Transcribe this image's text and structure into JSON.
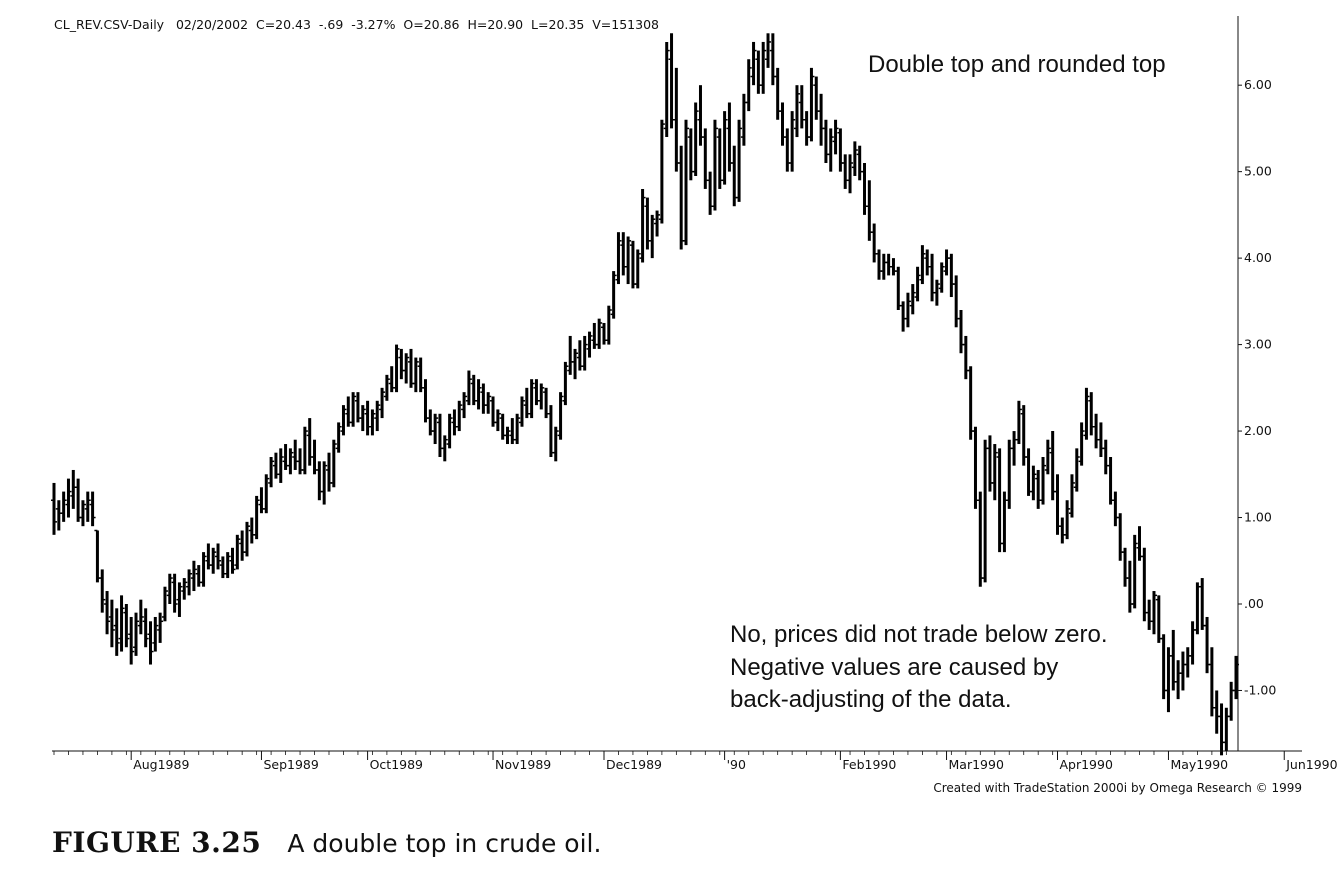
{
  "header": "CL_REV.CSV-Daily   02/20/2002  C=20.43  -.69  -3.27%  O=20.86  H=20.90  L=20.35  V=151308",
  "annotations": {
    "top": "Double top and rounded top",
    "bottom": [
      "No, prices did not trade below zero.",
      "Negative values are caused by",
      "back-adjusting of the data."
    ]
  },
  "credit": "Created with TradeStation 2000i by Omega Research © 1999",
  "caption": {
    "label": "FIGURE 3.25",
    "text": "A double top in crude oil."
  },
  "chart_data": {
    "type": "bar",
    "style": "ohlc",
    "title": "",
    "xlabel": "",
    "ylabel": "",
    "ylim": [
      -1.7,
      6.8
    ],
    "grid": false,
    "y_axis_position": "right",
    "y_ticks": [
      {
        "value": 6.0,
        "label": "6.00"
      },
      {
        "value": 5.0,
        "label": "5.00"
      },
      {
        "value": 4.0,
        "label": "4.00"
      },
      {
        "value": 3.0,
        "label": "3.00"
      },
      {
        "value": 2.0,
        "label": "2.00"
      },
      {
        "value": 1.0,
        "label": "1.00"
      },
      {
        "value": 0.0,
        "label": ".00"
      },
      {
        "value": -1.0,
        "label": "-1.00"
      }
    ],
    "x_ticks": [
      {
        "index": 16,
        "label": "Aug1989"
      },
      {
        "index": 43,
        "label": "Sep1989"
      },
      {
        "index": 65,
        "label": "Oct1989"
      },
      {
        "index": 91,
        "label": "Nov1989"
      },
      {
        "index": 114,
        "label": "Dec1989"
      },
      {
        "index": 139,
        "label": "'90"
      },
      {
        "index": 163,
        "label": "Feb1990"
      },
      {
        "index": 185,
        "label": "Mar1990"
      },
      {
        "index": 208,
        "label": "Apr1990"
      },
      {
        "index": 231,
        "label": "May1990"
      },
      {
        "index": 255,
        "label": "Jun1990"
      }
    ],
    "bars": [
      [
        1.2,
        1.4,
        0.8,
        0.95
      ],
      [
        1.1,
        1.2,
        0.85,
        1.05
      ],
      [
        1.05,
        1.3,
        0.95,
        1.2
      ],
      [
        1.15,
        1.45,
        1.0,
        1.3
      ],
      [
        1.25,
        1.55,
        1.1,
        1.35
      ],
      [
        1.35,
        1.45,
        0.95,
        1.0
      ],
      [
        1.0,
        1.2,
        0.9,
        1.15
      ],
      [
        1.1,
        1.3,
        0.95,
        1.2
      ],
      [
        1.15,
        1.3,
        0.9,
        1.0
      ],
      [
        0.85,
        0.85,
        0.25,
        0.3
      ],
      [
        0.3,
        0.4,
        -0.1,
        0.05
      ],
      [
        0.0,
        0.15,
        -0.35,
        -0.2
      ],
      [
        -0.15,
        0.05,
        -0.5,
        -0.3
      ],
      [
        -0.25,
        -0.05,
        -0.6,
        -0.45
      ],
      [
        -0.4,
        0.1,
        -0.55,
        -0.05
      ],
      [
        -0.1,
        0.0,
        -0.5,
        -0.4
      ],
      [
        -0.35,
        -0.15,
        -0.7,
        -0.55
      ],
      [
        -0.5,
        -0.1,
        -0.6,
        -0.2
      ],
      [
        -0.25,
        0.05,
        -0.35,
        -0.15
      ],
      [
        -0.2,
        -0.05,
        -0.5,
        -0.4
      ],
      [
        -0.35,
        -0.2,
        -0.7,
        -0.55
      ],
      [
        -0.45,
        -0.15,
        -0.55,
        -0.25
      ],
      [
        -0.3,
        -0.1,
        -0.45,
        -0.2
      ],
      [
        -0.15,
        0.2,
        -0.2,
        0.15
      ],
      [
        0.1,
        0.35,
        0.0,
        0.3
      ],
      [
        0.25,
        0.35,
        -0.1,
        0.0
      ],
      [
        0.05,
        0.25,
        -0.15,
        0.2
      ],
      [
        0.15,
        0.3,
        0.05,
        0.25
      ],
      [
        0.2,
        0.4,
        0.1,
        0.35
      ],
      [
        0.3,
        0.5,
        0.15,
        0.4
      ],
      [
        0.35,
        0.45,
        0.2,
        0.25
      ],
      [
        0.25,
        0.6,
        0.2,
        0.55
      ],
      [
        0.5,
        0.7,
        0.4,
        0.45
      ],
      [
        0.45,
        0.65,
        0.35,
        0.6
      ],
      [
        0.55,
        0.7,
        0.4,
        0.5
      ],
      [
        0.45,
        0.55,
        0.3,
        0.35
      ],
      [
        0.35,
        0.6,
        0.3,
        0.55
      ],
      [
        0.5,
        0.65,
        0.35,
        0.4
      ],
      [
        0.45,
        0.8,
        0.4,
        0.75
      ],
      [
        0.7,
        0.85,
        0.5,
        0.6
      ],
      [
        0.6,
        0.95,
        0.55,
        0.9
      ],
      [
        0.85,
        1.0,
        0.7,
        0.8
      ],
      [
        0.8,
        1.25,
        0.75,
        1.2
      ],
      [
        1.15,
        1.35,
        1.05,
        1.1
      ],
      [
        1.1,
        1.5,
        1.05,
        1.45
      ],
      [
        1.4,
        1.7,
        1.35,
        1.65
      ],
      [
        1.6,
        1.75,
        1.45,
        1.5
      ],
      [
        1.5,
        1.8,
        1.4,
        1.7
      ],
      [
        1.65,
        1.85,
        1.55,
        1.6
      ],
      [
        1.6,
        1.8,
        1.5,
        1.75
      ],
      [
        1.7,
        1.9,
        1.55,
        1.65
      ],
      [
        1.65,
        1.8,
        1.5,
        1.55
      ],
      [
        1.55,
        2.05,
        1.5,
        2.0
      ],
      [
        1.95,
        2.15,
        1.6,
        1.7
      ],
      [
        1.7,
        1.9,
        1.5,
        1.55
      ],
      [
        1.55,
        1.65,
        1.2,
        1.3
      ],
      [
        1.3,
        1.65,
        1.15,
        1.6
      ],
      [
        1.55,
        1.75,
        1.3,
        1.4
      ],
      [
        1.4,
        1.9,
        1.35,
        1.85
      ],
      [
        1.8,
        2.1,
        1.75,
        2.05
      ],
      [
        2.0,
        2.3,
        1.95,
        2.25
      ],
      [
        2.2,
        2.4,
        2.05,
        2.1
      ],
      [
        2.1,
        2.45,
        2.05,
        2.4
      ],
      [
        2.35,
        2.45,
        2.1,
        2.15
      ],
      [
        2.15,
        2.3,
        2.0,
        2.25
      ],
      [
        2.2,
        2.35,
        1.95,
        2.05
      ],
      [
        2.05,
        2.25,
        1.95,
        2.2
      ],
      [
        2.15,
        2.35,
        2.0,
        2.3
      ],
      [
        2.25,
        2.5,
        2.15,
        2.45
      ],
      [
        2.4,
        2.65,
        2.35,
        2.6
      ],
      [
        2.55,
        2.75,
        2.45,
        2.5
      ],
      [
        2.5,
        3.0,
        2.45,
        2.95
      ],
      [
        2.85,
        2.95,
        2.6,
        2.7
      ],
      [
        2.7,
        2.9,
        2.55,
        2.85
      ],
      [
        2.8,
        2.95,
        2.5,
        2.55
      ],
      [
        2.55,
        2.85,
        2.45,
        2.8
      ],
      [
        2.75,
        2.85,
        2.45,
        2.5
      ],
      [
        2.5,
        2.6,
        2.1,
        2.15
      ],
      [
        2.15,
        2.25,
        1.95,
        2.0
      ],
      [
        2.0,
        2.2,
        1.85,
        2.15
      ],
      [
        2.1,
        2.2,
        1.7,
        1.8
      ],
      [
        1.8,
        1.95,
        1.65,
        1.9
      ],
      [
        1.85,
        2.2,
        1.8,
        2.15
      ],
      [
        2.1,
        2.25,
        1.95,
        2.05
      ],
      [
        2.05,
        2.35,
        2.0,
        2.3
      ],
      [
        2.25,
        2.45,
        2.15,
        2.4
      ],
      [
        2.35,
        2.7,
        2.3,
        2.6
      ],
      [
        2.55,
        2.65,
        2.3,
        2.35
      ],
      [
        2.35,
        2.6,
        2.25,
        2.5
      ],
      [
        2.45,
        2.55,
        2.2,
        2.3
      ],
      [
        2.3,
        2.45,
        2.2,
        2.4
      ],
      [
        2.35,
        2.4,
        2.05,
        2.1
      ],
      [
        2.1,
        2.25,
        2.0,
        2.2
      ],
      [
        2.15,
        2.2,
        1.9,
        1.95
      ],
      [
        1.95,
        2.05,
        1.85,
        2.0
      ],
      [
        1.95,
        2.15,
        1.85,
        1.9
      ],
      [
        1.9,
        2.2,
        1.85,
        2.15
      ],
      [
        2.1,
        2.4,
        2.05,
        2.35
      ],
      [
        2.3,
        2.5,
        2.15,
        2.2
      ],
      [
        2.2,
        2.6,
        2.15,
        2.55
      ],
      [
        2.5,
        2.6,
        2.3,
        2.35
      ],
      [
        2.35,
        2.55,
        2.25,
        2.5
      ],
      [
        2.45,
        2.5,
        2.15,
        2.2
      ],
      [
        2.2,
        2.3,
        1.7,
        1.75
      ],
      [
        1.75,
        2.05,
        1.65,
        2.0
      ],
      [
        1.95,
        2.45,
        1.9,
        2.4
      ],
      [
        2.35,
        2.8,
        2.3,
        2.75
      ],
      [
        2.7,
        3.1,
        2.65,
        2.8
      ],
      [
        2.8,
        2.95,
        2.6,
        2.9
      ],
      [
        2.85,
        3.05,
        2.7,
        2.75
      ],
      [
        2.75,
        3.1,
        2.7,
        3.0
      ],
      [
        2.95,
        3.15,
        2.85,
        3.1
      ],
      [
        3.05,
        3.25,
        2.95,
        3.0
      ],
      [
        3.0,
        3.3,
        2.95,
        3.25
      ],
      [
        3.2,
        3.25,
        3.0,
        3.05
      ],
      [
        3.05,
        3.45,
        3.0,
        3.4
      ],
      [
        3.35,
        3.85,
        3.3,
        3.8
      ],
      [
        3.75,
        4.3,
        3.7,
        4.2
      ],
      [
        4.15,
        4.3,
        3.8,
        3.9
      ],
      [
        3.9,
        4.25,
        3.7,
        4.2
      ],
      [
        4.15,
        4.2,
        3.65,
        3.7
      ],
      [
        3.7,
        4.1,
        3.65,
        4.05
      ],
      [
        4.0,
        4.8,
        3.95,
        4.7
      ],
      [
        4.6,
        4.7,
        4.1,
        4.2
      ],
      [
        4.2,
        4.5,
        4.0,
        4.45
      ],
      [
        4.4,
        4.55,
        4.25,
        4.5
      ],
      [
        4.45,
        5.6,
        4.4,
        5.55
      ],
      [
        5.5,
        6.5,
        5.4,
        6.4
      ],
      [
        6.3,
        6.6,
        5.5,
        5.6
      ],
      [
        5.6,
        6.2,
        5.0,
        5.1
      ],
      [
        5.1,
        5.3,
        4.1,
        4.2
      ],
      [
        4.2,
        5.6,
        4.15,
        5.5
      ],
      [
        5.4,
        5.5,
        4.9,
        5.0
      ],
      [
        5.0,
        5.8,
        4.95,
        5.7
      ],
      [
        5.6,
        6.0,
        5.3,
        5.4
      ],
      [
        5.4,
        5.5,
        4.8,
        4.9
      ],
      [
        4.9,
        5.0,
        4.5,
        4.6
      ],
      [
        4.6,
        5.6,
        4.55,
        5.5
      ],
      [
        5.4,
        5.5,
        4.8,
        4.9
      ],
      [
        4.9,
        5.7,
        4.85,
        5.6
      ],
      [
        5.5,
        5.8,
        5.0,
        5.1
      ],
      [
        5.1,
        5.3,
        4.6,
        4.7
      ],
      [
        4.7,
        5.6,
        4.65,
        5.5
      ],
      [
        5.4,
        5.9,
        5.3,
        5.8
      ],
      [
        5.8,
        6.3,
        5.7,
        6.2
      ],
      [
        6.1,
        6.5,
        6.0,
        6.4
      ],
      [
        6.3,
        6.4,
        5.9,
        6.0
      ],
      [
        6.0,
        6.5,
        5.9,
        6.4
      ],
      [
        6.3,
        6.6,
        6.2,
        6.5
      ],
      [
        6.4,
        6.6,
        6.0,
        6.1
      ],
      [
        6.1,
        6.2,
        5.6,
        5.7
      ],
      [
        5.7,
        5.8,
        5.3,
        5.4
      ],
      [
        5.4,
        5.5,
        5.0,
        5.1
      ],
      [
        5.1,
        5.7,
        5.0,
        5.6
      ],
      [
        5.5,
        6.0,
        5.4,
        5.9
      ],
      [
        5.8,
        6.0,
        5.5,
        5.6
      ],
      [
        5.6,
        5.7,
        5.3,
        5.4
      ],
      [
        5.4,
        6.2,
        5.35,
        6.1
      ],
      [
        6.0,
        6.1,
        5.6,
        5.7
      ],
      [
        5.7,
        5.9,
        5.3,
        5.5
      ],
      [
        5.5,
        5.6,
        5.1,
        5.2
      ],
      [
        5.2,
        5.5,
        5.0,
        5.4
      ],
      [
        5.35,
        5.6,
        5.2,
        5.5
      ],
      [
        5.45,
        5.5,
        5.0,
        5.1
      ],
      [
        5.1,
        5.2,
        4.8,
        4.9
      ],
      [
        4.9,
        5.2,
        4.75,
        5.1
      ],
      [
        5.05,
        5.35,
        4.95,
        5.25
      ],
      [
        5.2,
        5.3,
        4.9,
        5.0
      ],
      [
        5.0,
        5.1,
        4.5,
        4.6
      ],
      [
        4.6,
        4.9,
        4.2,
        4.3
      ],
      [
        4.3,
        4.4,
        3.95,
        4.05
      ],
      [
        4.05,
        4.1,
        3.75,
        3.85
      ],
      [
        3.85,
        4.05,
        3.75,
        3.95
      ],
      [
        3.95,
        4.05,
        3.8,
        3.9
      ],
      [
        3.9,
        4.0,
        3.8,
        3.85
      ],
      [
        3.85,
        3.9,
        3.4,
        3.45
      ],
      [
        3.45,
        3.5,
        3.15,
        3.3
      ],
      [
        3.3,
        3.6,
        3.2,
        3.5
      ],
      [
        3.45,
        3.7,
        3.35,
        3.6
      ],
      [
        3.55,
        3.9,
        3.5,
        3.8
      ],
      [
        3.75,
        4.15,
        3.7,
        4.05
      ],
      [
        4.0,
        4.1,
        3.8,
        3.9
      ],
      [
        3.9,
        4.05,
        3.5,
        3.6
      ],
      [
        3.6,
        3.75,
        3.45,
        3.7
      ],
      [
        3.65,
        3.95,
        3.6,
        3.9
      ],
      [
        3.85,
        4.1,
        3.8,
        4.0
      ],
      [
        4.0,
        4.05,
        3.55,
        3.7
      ],
      [
        3.7,
        3.8,
        3.2,
        3.3
      ],
      [
        3.3,
        3.4,
        2.9,
        3.0
      ],
      [
        3.0,
        3.1,
        2.6,
        2.7
      ],
      [
        2.7,
        2.75,
        1.9,
        2.0
      ],
      [
        2.0,
        2.05,
        1.1,
        1.2
      ],
      [
        1.2,
        1.3,
        0.2,
        0.3
      ],
      [
        0.3,
        1.9,
        0.25,
        1.8
      ],
      [
        1.8,
        1.95,
        1.3,
        1.4
      ],
      [
        1.4,
        1.85,
        1.2,
        1.75
      ],
      [
        1.7,
        1.8,
        0.6,
        0.7
      ],
      [
        0.7,
        1.3,
        0.6,
        1.2
      ],
      [
        1.2,
        1.9,
        1.1,
        1.8
      ],
      [
        1.8,
        2.0,
        1.6,
        1.9
      ],
      [
        1.9,
        2.35,
        1.85,
        2.25
      ],
      [
        2.2,
        2.3,
        1.6,
        1.7
      ],
      [
        1.7,
        1.8,
        1.25,
        1.3
      ],
      [
        1.3,
        1.6,
        1.2,
        1.5
      ],
      [
        1.45,
        1.55,
        1.1,
        1.2
      ],
      [
        1.2,
        1.7,
        1.15,
        1.6
      ],
      [
        1.55,
        1.9,
        1.5,
        1.8
      ],
      [
        1.75,
        2.0,
        1.2,
        1.3
      ],
      [
        1.3,
        1.5,
        0.8,
        0.9
      ],
      [
        0.9,
        1.0,
        0.7,
        0.8
      ],
      [
        0.8,
        1.2,
        0.75,
        1.1
      ],
      [
        1.05,
        1.5,
        1.0,
        1.4
      ],
      [
        1.35,
        1.8,
        1.3,
        1.7
      ],
      [
        1.65,
        2.1,
        1.6,
        2.0
      ],
      [
        1.95,
        2.5,
        1.9,
        2.4
      ],
      [
        2.35,
        2.45,
        1.95,
        2.05
      ],
      [
        2.05,
        2.2,
        1.8,
        1.9
      ],
      [
        1.9,
        2.1,
        1.7,
        1.8
      ],
      [
        1.8,
        1.9,
        1.5,
        1.6
      ],
      [
        1.6,
        1.7,
        1.15,
        1.2
      ],
      [
        1.2,
        1.3,
        0.9,
        1.0
      ],
      [
        1.0,
        1.05,
        0.5,
        0.6
      ],
      [
        0.6,
        0.65,
        0.2,
        0.3
      ],
      [
        0.3,
        0.5,
        -0.1,
        0.0
      ],
      [
        0.0,
        0.8,
        -0.05,
        0.7
      ],
      [
        0.65,
        0.9,
        0.5,
        0.55
      ],
      [
        0.55,
        0.65,
        -0.2,
        -0.1
      ],
      [
        -0.1,
        0.05,
        -0.3,
        -0.2
      ],
      [
        -0.2,
        0.15,
        -0.35,
        0.1
      ],
      [
        0.05,
        0.1,
        -0.45,
        -0.4
      ],
      [
        -0.4,
        -0.35,
        -1.1,
        -1.0
      ],
      [
        -1.0,
        -0.5,
        -1.25,
        -0.6
      ],
      [
        -0.6,
        -0.3,
        -1.0,
        -0.9
      ],
      [
        -0.9,
        -0.65,
        -1.1,
        -0.8
      ],
      [
        -0.8,
        -0.55,
        -1.0,
        -0.7
      ],
      [
        -0.7,
        -0.5,
        -0.85,
        -0.6
      ],
      [
        -0.6,
        -0.2,
        -0.7,
        -0.3
      ],
      [
        -0.3,
        0.25,
        -0.35,
        0.2
      ],
      [
        0.2,
        0.3,
        -0.3,
        -0.25
      ],
      [
        -0.25,
        -0.15,
        -0.8,
        -0.7
      ],
      [
        -0.7,
        -0.5,
        -1.3,
        -1.2
      ],
      [
        -1.2,
        -1.0,
        -1.5,
        -1.3
      ],
      [
        -1.3,
        -1.15,
        -1.75,
        -1.6
      ],
      [
        -1.6,
        -1.2,
        -1.7,
        -1.3
      ],
      [
        -1.3,
        -0.9,
        -1.35,
        -1.0
      ],
      [
        -1.0,
        -0.6,
        -1.1,
        -0.7
      ]
    ]
  }
}
